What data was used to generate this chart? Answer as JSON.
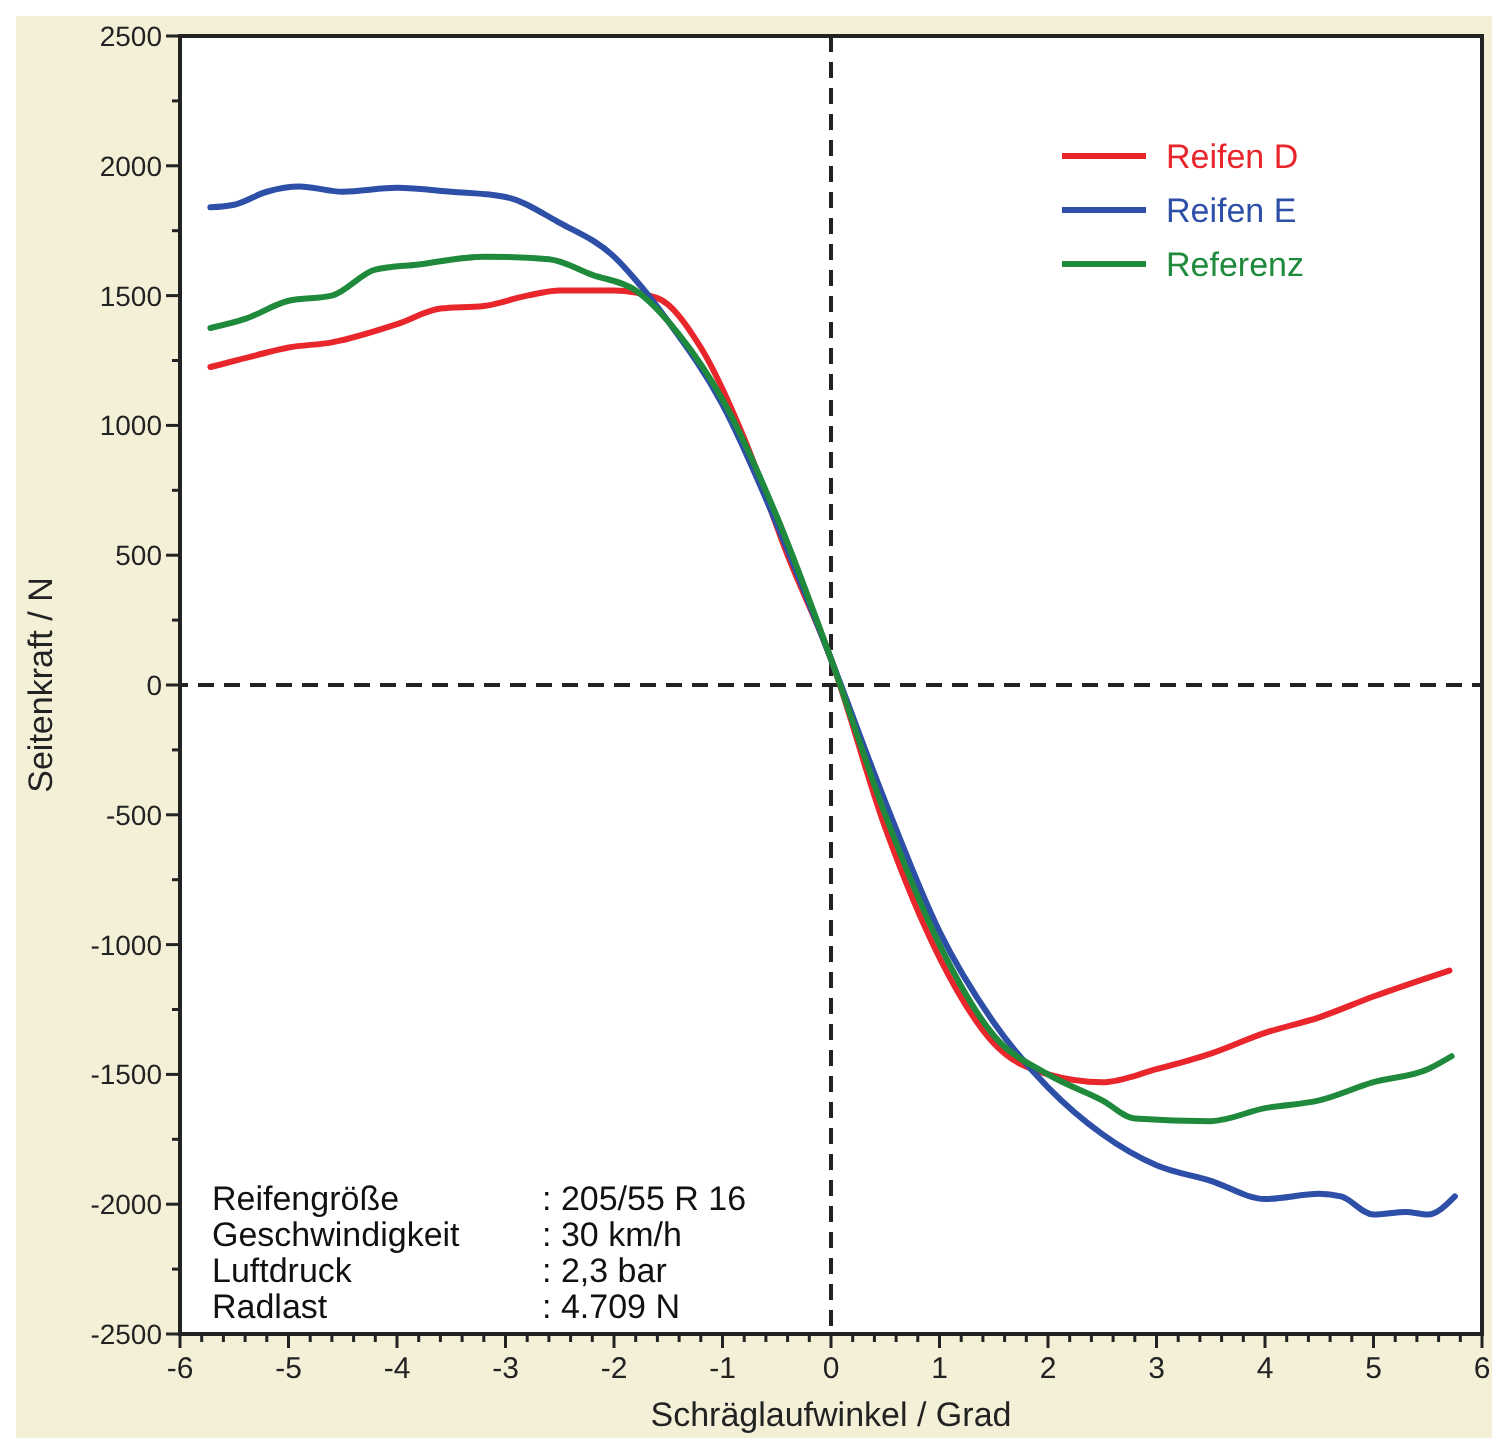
{
  "chart_data": {
    "type": "line",
    "xlabel": "Schräglaufwinkel / Grad",
    "ylabel": "Seitenkraft / N",
    "xlim": [
      -6,
      6
    ],
    "xticks": [
      -6,
      {
        "value": -5.8,
        "label": null
      },
      {
        "value": -5.6,
        "label": null
      },
      {
        "value": -5.4,
        "label": null
      },
      {
        "value": -5.2,
        "label": null
      },
      -5,
      {
        "value": -4.8,
        "label": null
      },
      {
        "value": -4.6,
        "label": null
      },
      {
        "value": -4.4,
        "label": null
      },
      {
        "value": -4.2,
        "label": null
      },
      -4,
      {
        "value": -3.8,
        "label": null
      },
      {
        "value": -3.6,
        "label": null
      },
      {
        "value": -3.4,
        "label": null
      },
      {
        "value": -3.2,
        "label": null
      },
      -3,
      {
        "value": -2.8,
        "label": null
      },
      {
        "value": -2.6,
        "label": null
      },
      {
        "value": -2.4,
        "label": null
      },
      {
        "value": -2.2,
        "label": null
      },
      -2,
      {
        "value": -1.8,
        "label": null
      },
      {
        "value": -1.6,
        "label": null
      },
      {
        "value": -1.4,
        "label": null
      },
      {
        "value": -1.2,
        "label": null
      },
      -1,
      {
        "value": -0.8,
        "label": null
      },
      {
        "value": -0.6,
        "label": null
      },
      {
        "value": -0.4,
        "label": null
      },
      {
        "value": -0.2,
        "label": null
      },
      0,
      {
        "value": 0.2,
        "label": null
      },
      {
        "value": 0.4,
        "label": null
      },
      {
        "value": 0.6,
        "label": null
      },
      {
        "value": 0.8,
        "label": null
      },
      1,
      {
        "value": 1.2,
        "label": null
      },
      {
        "value": 1.4,
        "label": null
      },
      {
        "value": 1.6,
        "label": null
      },
      {
        "value": 1.8,
        "label": null
      },
      2,
      {
        "value": 2.2,
        "label": null
      },
      {
        "value": 2.4,
        "label": null
      },
      {
        "value": 2.6,
        "label": null
      },
      {
        "value": 2.8,
        "label": null
      },
      3,
      {
        "value": 3.2,
        "label": null
      },
      {
        "value": 3.4,
        "label": null
      },
      {
        "value": 3.6,
        "label": null
      },
      {
        "value": 3.8,
        "label": null
      },
      4,
      {
        "value": 4.2,
        "label": null
      },
      {
        "value": 4.4,
        "label": null
      },
      {
        "value": 4.6,
        "label": null
      },
      {
        "value": 4.8,
        "label": null
      },
      5,
      {
        "value": 5.2,
        "label": null
      },
      {
        "value": 5.4,
        "label": null
      },
      {
        "value": 5.6,
        "label": null
      },
      {
        "value": 5.8,
        "label": null
      },
      6
    ],
    "ylim": [
      -2500,
      2500
    ],
    "yticks": [
      -2500,
      {
        "value": -2250,
        "label": null
      },
      -2000,
      {
        "value": -1750,
        "label": null
      },
      -1500,
      {
        "value": -1250,
        "label": null
      },
      -1000,
      {
        "value": -750,
        "label": null
      },
      -500,
      {
        "value": -250,
        "label": null
      },
      0,
      {
        "value": 250,
        "label": null
      },
      500,
      {
        "value": 750,
        "label": null
      },
      1000,
      {
        "value": 1250,
        "label": null
      },
      1500,
      {
        "value": 1750,
        "label": null
      },
      2000,
      {
        "value": 2250,
        "label": null
      },
      2500
    ],
    "grid": false,
    "legend": "top right",
    "marker": "none",
    "line_style": "solid",
    "ref_lines": [
      {
        "axis": "x",
        "value": 0,
        "line_style": "dashed",
        "color": "#222222"
      },
      {
        "axis": "y",
        "value": 0,
        "line_style": "dashed",
        "color": "#222222"
      }
    ],
    "annotations": [
      "Reifengröße : 205/55 R 16",
      "Geschwindigkeit : 30 km/h",
      "Luftdruck : 2,3 bar",
      "Radlast : 4.709 N"
    ],
    "series": [
      {
        "name": "Reifen D",
        "color": "#e8262b",
        "x": [
          -5.72,
          -5.3,
          -5,
          -4.6,
          -4,
          -3.6,
          -3.2,
          -2.8,
          -2.5,
          -2,
          -1.6,
          -1.2,
          -0.8,
          -0.4,
          0,
          0.5,
          1,
          1.5,
          2,
          2.5,
          3,
          3.5,
          4,
          4.5,
          5,
          5.7
        ],
        "values": [
          1225,
          1270,
          1300,
          1320,
          1390,
          1450,
          1460,
          1500,
          1520,
          1520,
          1490,
          1300,
          950,
          500,
          100,
          -550,
          -1050,
          -1380,
          -1500,
          -1530,
          -1480,
          -1420,
          -1340,
          -1280,
          -1200,
          -1100
        ]
      },
      {
        "name": "Reifen E",
        "color": "#2e4fa8",
        "x": [
          -5.72,
          -5.5,
          -5.2,
          -4.9,
          -4.5,
          -4,
          -3.5,
          -3,
          -2.5,
          -2,
          -1.8,
          -1.5,
          -1,
          -0.5,
          0,
          0.5,
          1,
          1.5,
          2,
          2.5,
          3,
          3.5,
          4,
          4.5,
          4.7,
          5,
          5.3,
          5.5,
          5.75
        ],
        "values": [
          1840,
          1850,
          1900,
          1920,
          1900,
          1915,
          1900,
          1880,
          1780,
          1650,
          1560,
          1400,
          1080,
          620,
          100,
          -450,
          -950,
          -1300,
          -1550,
          -1730,
          -1850,
          -1910,
          -1980,
          -1960,
          -1970,
          -2040,
          -2030,
          -2040,
          -1970
        ]
      },
      {
        "name": "Referenz",
        "color": "#1f8a3c",
        "x": [
          -5.72,
          -5.4,
          -5,
          -4.6,
          -4.2,
          -3.8,
          -3.2,
          -2.6,
          -2.2,
          -1.8,
          -1.4,
          -1,
          -0.5,
          0,
          0.5,
          1,
          1.5,
          2,
          2.5,
          2.8,
          3.5,
          4,
          4.5,
          5,
          5.5,
          5.72
        ],
        "values": [
          1375,
          1410,
          1480,
          1500,
          1600,
          1620,
          1650,
          1640,
          1580,
          1520,
          1350,
          1100,
          650,
          100,
          -500,
          -1000,
          -1350,
          -1500,
          -1600,
          -1670,
          -1680,
          -1630,
          -1600,
          -1530,
          -1480,
          -1430
        ]
      }
    ]
  }
}
